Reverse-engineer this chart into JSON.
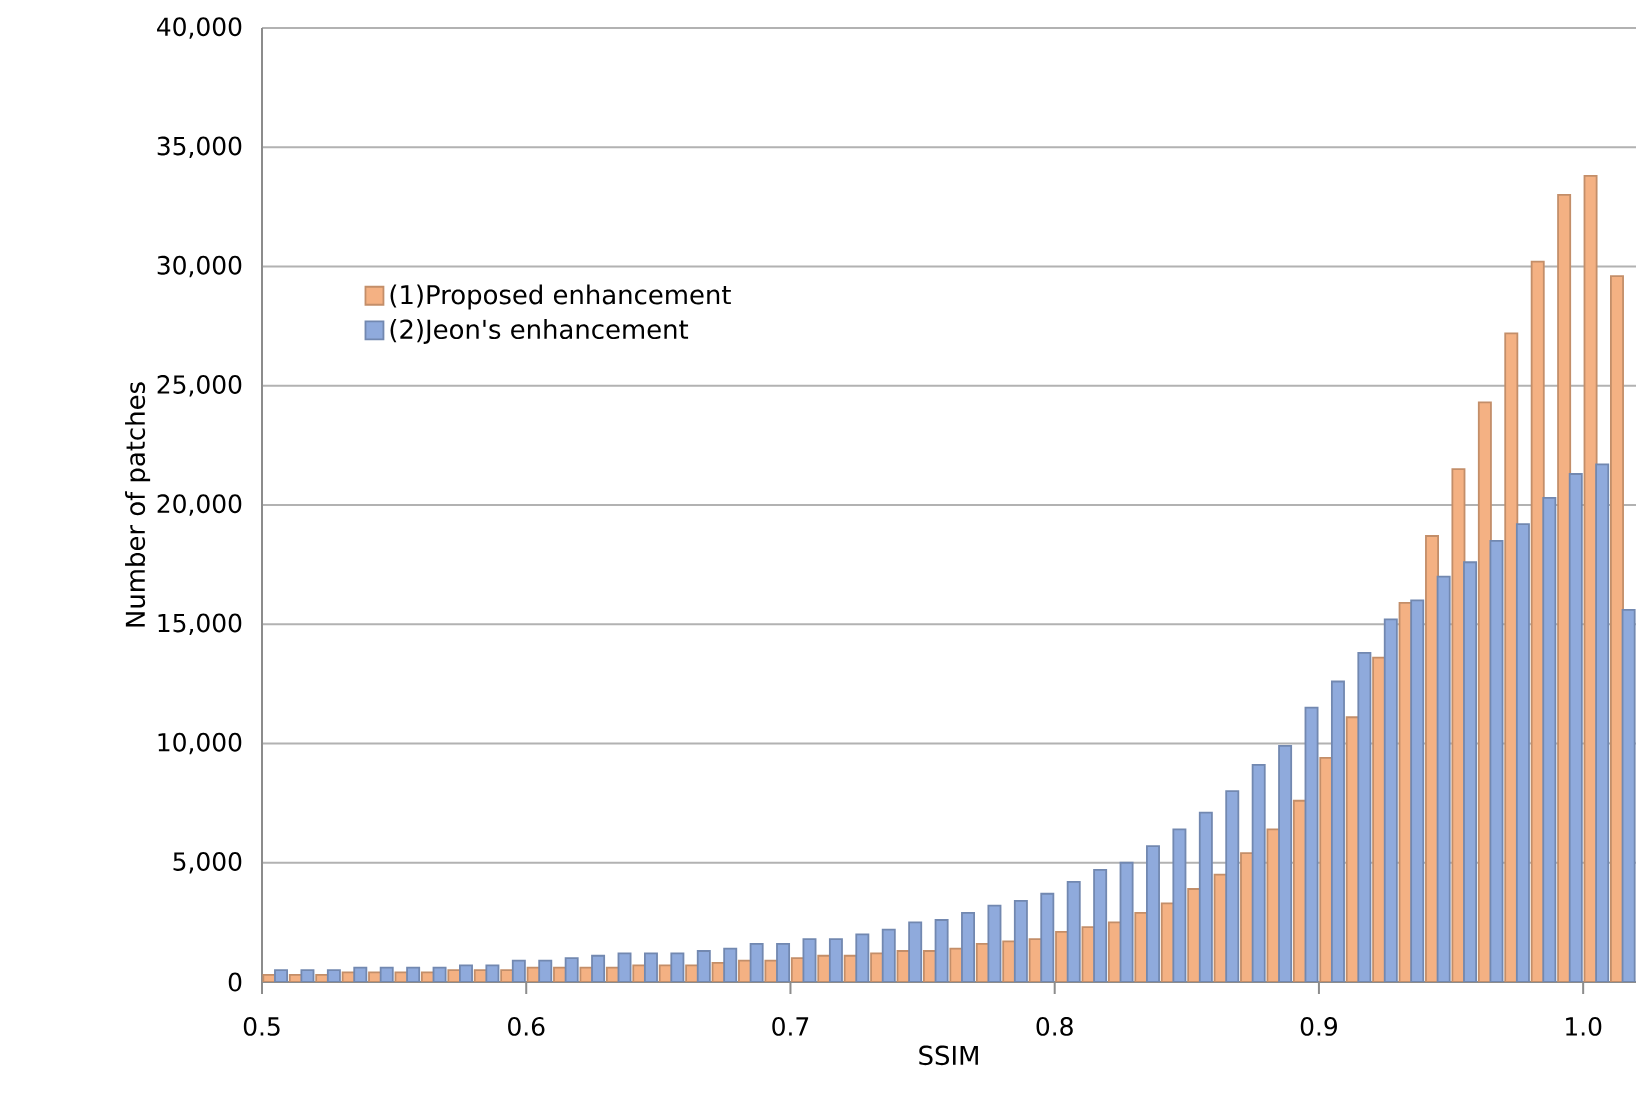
{
  "chart_data": {
    "type": "bar",
    "xlabel": "SSIM",
    "ylabel": "Number of patches",
    "x": [
      0.505,
      0.515,
      0.525,
      0.535,
      0.545,
      0.555,
      0.565,
      0.575,
      0.585,
      0.595,
      0.605,
      0.615,
      0.625,
      0.635,
      0.645,
      0.655,
      0.665,
      0.675,
      0.685,
      0.695,
      0.705,
      0.715,
      0.725,
      0.735,
      0.745,
      0.755,
      0.765,
      0.775,
      0.785,
      0.795,
      0.805,
      0.815,
      0.825,
      0.835,
      0.845,
      0.855,
      0.865,
      0.875,
      0.885,
      0.895,
      0.905,
      0.915,
      0.925,
      0.935,
      0.945,
      0.955,
      0.965,
      0.975,
      0.985,
      0.995,
      1.005,
      1.015
    ],
    "series": [
      {
        "name": "(1)Proposed enhancement",
        "color": "#f4b183",
        "values": [
          300,
          300,
          300,
          400,
          400,
          400,
          400,
          500,
          500,
          500,
          600,
          600,
          600,
          600,
          700,
          700,
          700,
          800,
          900,
          900,
          1000,
          1100,
          1100,
          1200,
          1300,
          1300,
          1400,
          1600,
          1700,
          1800,
          2100,
          2300,
          2500,
          2900,
          3300,
          3900,
          4500,
          5400,
          6400,
          7600,
          9400,
          11100,
          13600,
          15900,
          18700,
          21500,
          24300,
          27200,
          30200,
          33000,
          33800,
          29600
        ]
      },
      {
        "name": "(2)Jeon's enhancement",
        "color": "#8faadc",
        "values": [
          500,
          500,
          500,
          600,
          600,
          600,
          600,
          700,
          700,
          900,
          900,
          1000,
          1100,
          1200,
          1200,
          1200,
          1300,
          1400,
          1600,
          1600,
          1800,
          1800,
          2000,
          2200,
          2500,
          2600,
          2900,
          3200,
          3400,
          3700,
          4200,
          4700,
          5000,
          5700,
          6400,
          7100,
          8000,
          9100,
          9900,
          11500,
          12600,
          13800,
          15200,
          16000,
          17000,
          17600,
          18500,
          19200,
          20300,
          21300,
          21700,
          15600
        ]
      }
    ],
    "xlim": [
      0.5,
      1.02
    ],
    "xticks": [
      0.5,
      0.6,
      0.7,
      0.8,
      0.9,
      {
        "value": 1.0,
        "label": "1.0"
      }
    ],
    "ylim": [
      0,
      40000
    ],
    "yticks": [
      0,
      {
        "value": 5000,
        "label": "5,000"
      },
      {
        "value": 10000,
        "label": "10,000"
      },
      {
        "value": 15000,
        "label": "15,000"
      },
      {
        "value": 20000,
        "label": "20,000"
      },
      {
        "value": 25000,
        "label": "25,000"
      },
      {
        "value": 30000,
        "label": "30,000"
      },
      {
        "value": 35000,
        "label": "35,000"
      },
      {
        "value": 40000,
        "label": "40,000"
      }
    ],
    "grid": "y",
    "legend": "left"
  }
}
